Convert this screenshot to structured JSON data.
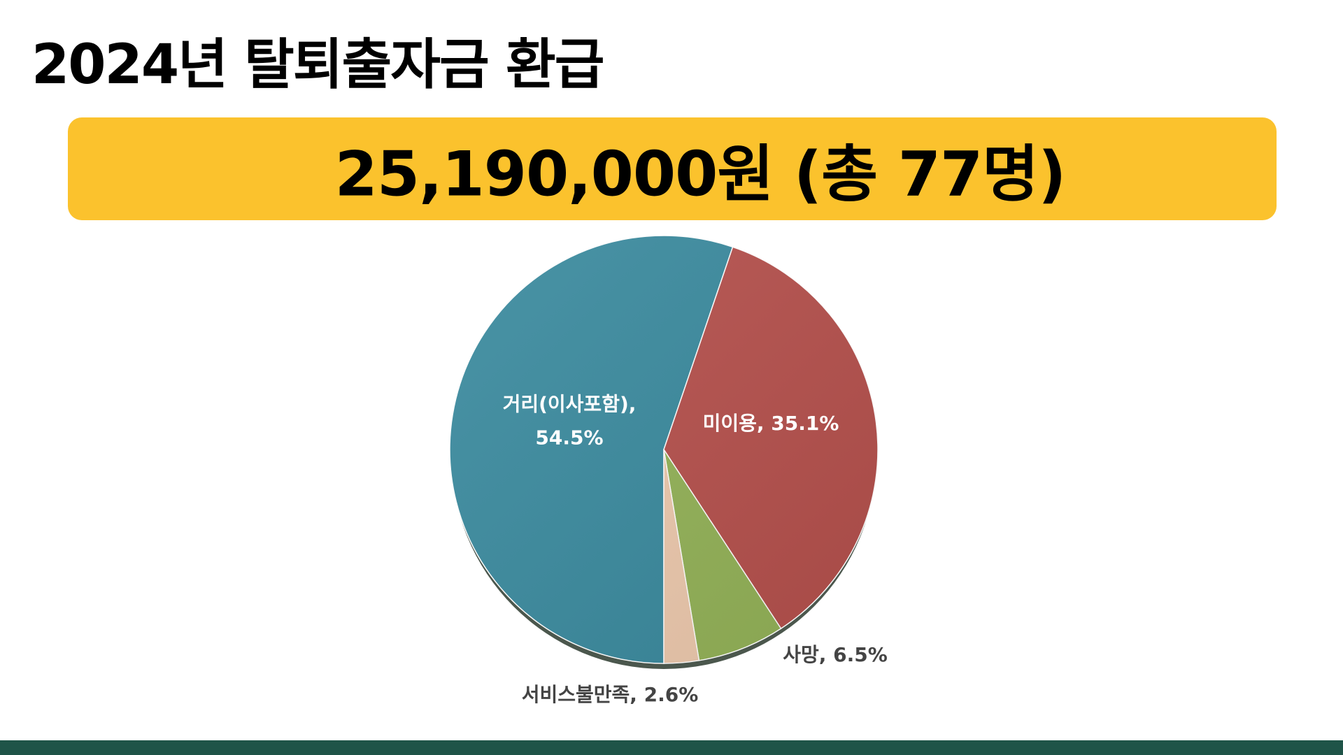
{
  "header": {
    "title": "2024년 탈퇴출자금 환급",
    "highlight": "25,190,000원 (총 77명)"
  },
  "chart_data": {
    "type": "pie",
    "values": [
      54.5,
      35.1,
      6.5,
      2.6
    ],
    "value_labels": [
      "거리(이사포함), 54.5%",
      "미이용, 35.1%",
      "사망, 6.5%",
      "서비스불만족, 2.6%"
    ],
    "colors": [
      "#3a8a9e",
      "#b5504c",
      "#93b257",
      "#edc9ad"
    ]
  }
}
